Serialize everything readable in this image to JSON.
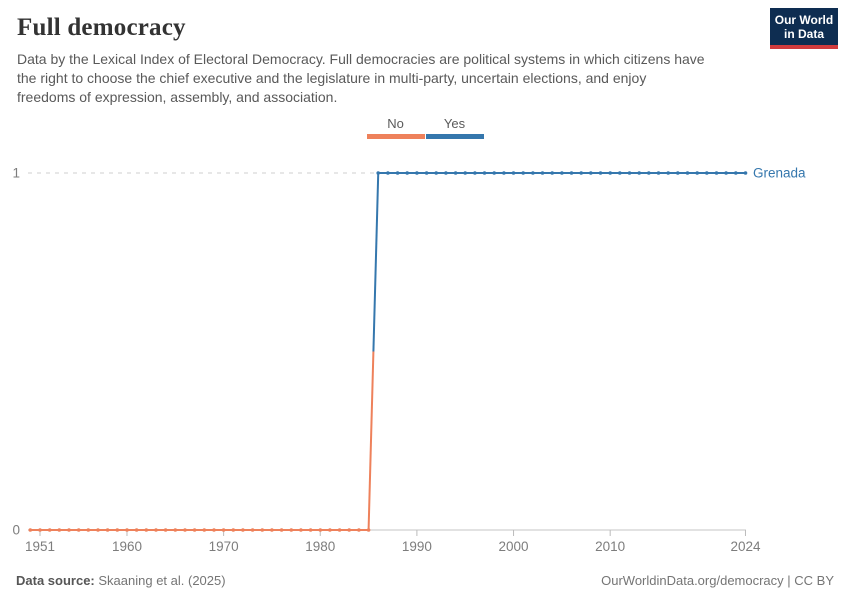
{
  "header": {
    "title": "Full democracy",
    "subtitle_lines": [
      "Data by the Lexical Index of Electoral Democracy. Full democracies are political systems in which citizens have",
      "the right to choose the chief executive and the legislature in multi-party, uncertain elections, and enjoy",
      "freedoms of expression, assembly, and association."
    ],
    "logo": {
      "line1": "Our World",
      "line2": "in Data",
      "bg": "#0e2d51",
      "bar": "#d13b3d"
    }
  },
  "legend": {
    "items": [
      {
        "label": "No",
        "color": "#ee815b"
      },
      {
        "label": "Yes",
        "color": "#3577ad"
      }
    ]
  },
  "chart_data": {
    "type": "line",
    "subtype": "step-with-yearly-markers",
    "title": "Full democracy",
    "entity_label": "Grenada",
    "series": [
      {
        "name": "Grenada",
        "segments": [
          {
            "label": "No",
            "value": 0,
            "from_year": 1950,
            "to_year": 1985,
            "color": "#ee815b"
          },
          {
            "label": "Yes",
            "value": 1,
            "from_year": 1986,
            "to_year": 2024,
            "color": "#3577ad"
          }
        ]
      }
    ],
    "x_range": [
      1950,
      2024
    ],
    "y_range": [
      0,
      1
    ],
    "x_ticks": [
      1951,
      1960,
      1970,
      1980,
      1990,
      2000,
      2010,
      2024
    ],
    "y_ticks": [
      0,
      1
    ],
    "xlabel": "",
    "ylabel": "",
    "grid": "dashed-horizontal-at-1",
    "legend_position": "top-center",
    "legend_entries": [
      "No",
      "Yes"
    ]
  },
  "colors": {
    "no": "#ee815b",
    "yes": "#3577ad",
    "axis": "#c6c6c6",
    "grid": "#cfcfcf",
    "tick": "#bbbbbb",
    "tick_label": "#7d7d7d",
    "series_label": "#3577ad"
  },
  "footer": {
    "source_label": "Data source:",
    "source_value": "Skaaning et al. (2025)",
    "rights": "OurWorldinData.org/democracy | CC BY"
  }
}
